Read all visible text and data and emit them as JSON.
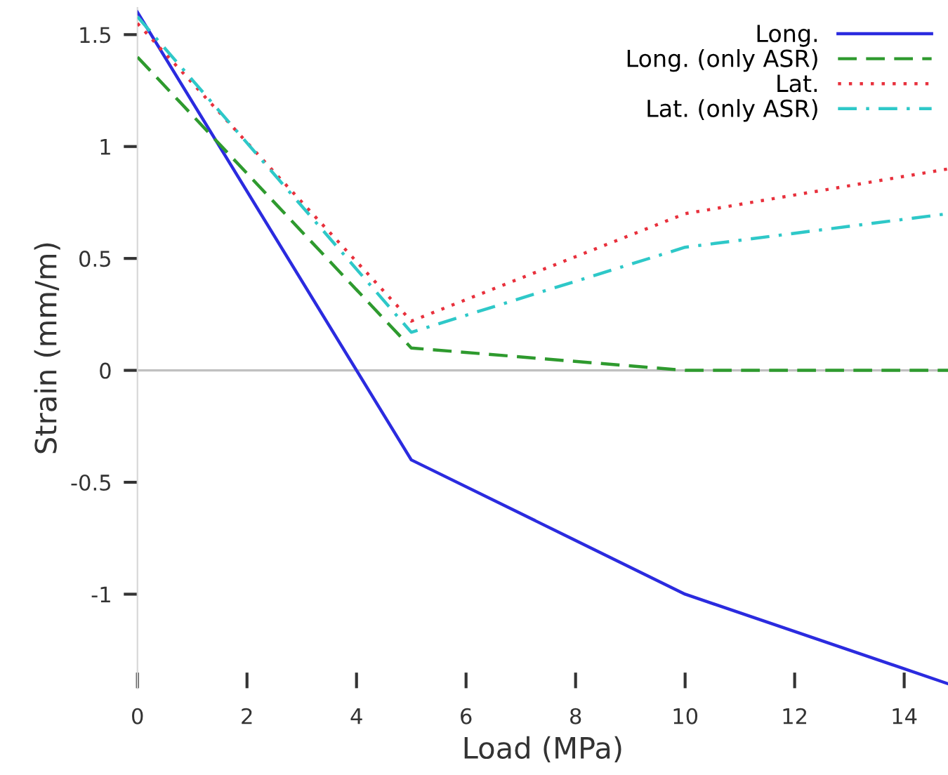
{
  "chart_data": {
    "type": "line",
    "xlabel": "Load (MPa)",
    "ylabel": "Strain (mm/m)",
    "x": [
      0,
      5,
      10,
      14.8
    ],
    "series": [
      {
        "name": "Long.",
        "color": "#2b2bdf",
        "values": [
          1.6,
          -0.4,
          -1.0,
          -1.4
        ],
        "line_style": "solid"
      },
      {
        "name": "Long. (only ASR)",
        "color": "#2e9a2e",
        "values": [
          1.4,
          0.1,
          0.0,
          0.0
        ],
        "line_style": "dashed"
      },
      {
        "name": "Lat.",
        "color": "#e8303c",
        "values": [
          1.55,
          0.22,
          0.7,
          0.9
        ],
        "line_style": "dotted"
      },
      {
        "name": "Lat. (only ASR)",
        "color": "#2ec8c8",
        "values": [
          1.58,
          0.17,
          0.55,
          0.7
        ],
        "line_style": "dashdot"
      }
    ],
    "xlim": [
      0,
      14.8
    ],
    "ylim": [
      -1.42,
      1.62
    ],
    "xticks": [
      0,
      2,
      4,
      6,
      8,
      10,
      12,
      14
    ],
    "yticks": [
      -1,
      -0.5,
      0,
      0.5,
      1,
      1.5
    ],
    "ref_lines": [
      {
        "axis": "y",
        "value": 0,
        "color": "#c0c0c0"
      }
    ],
    "grid": false,
    "legend": "top right",
    "marker": "none"
  }
}
